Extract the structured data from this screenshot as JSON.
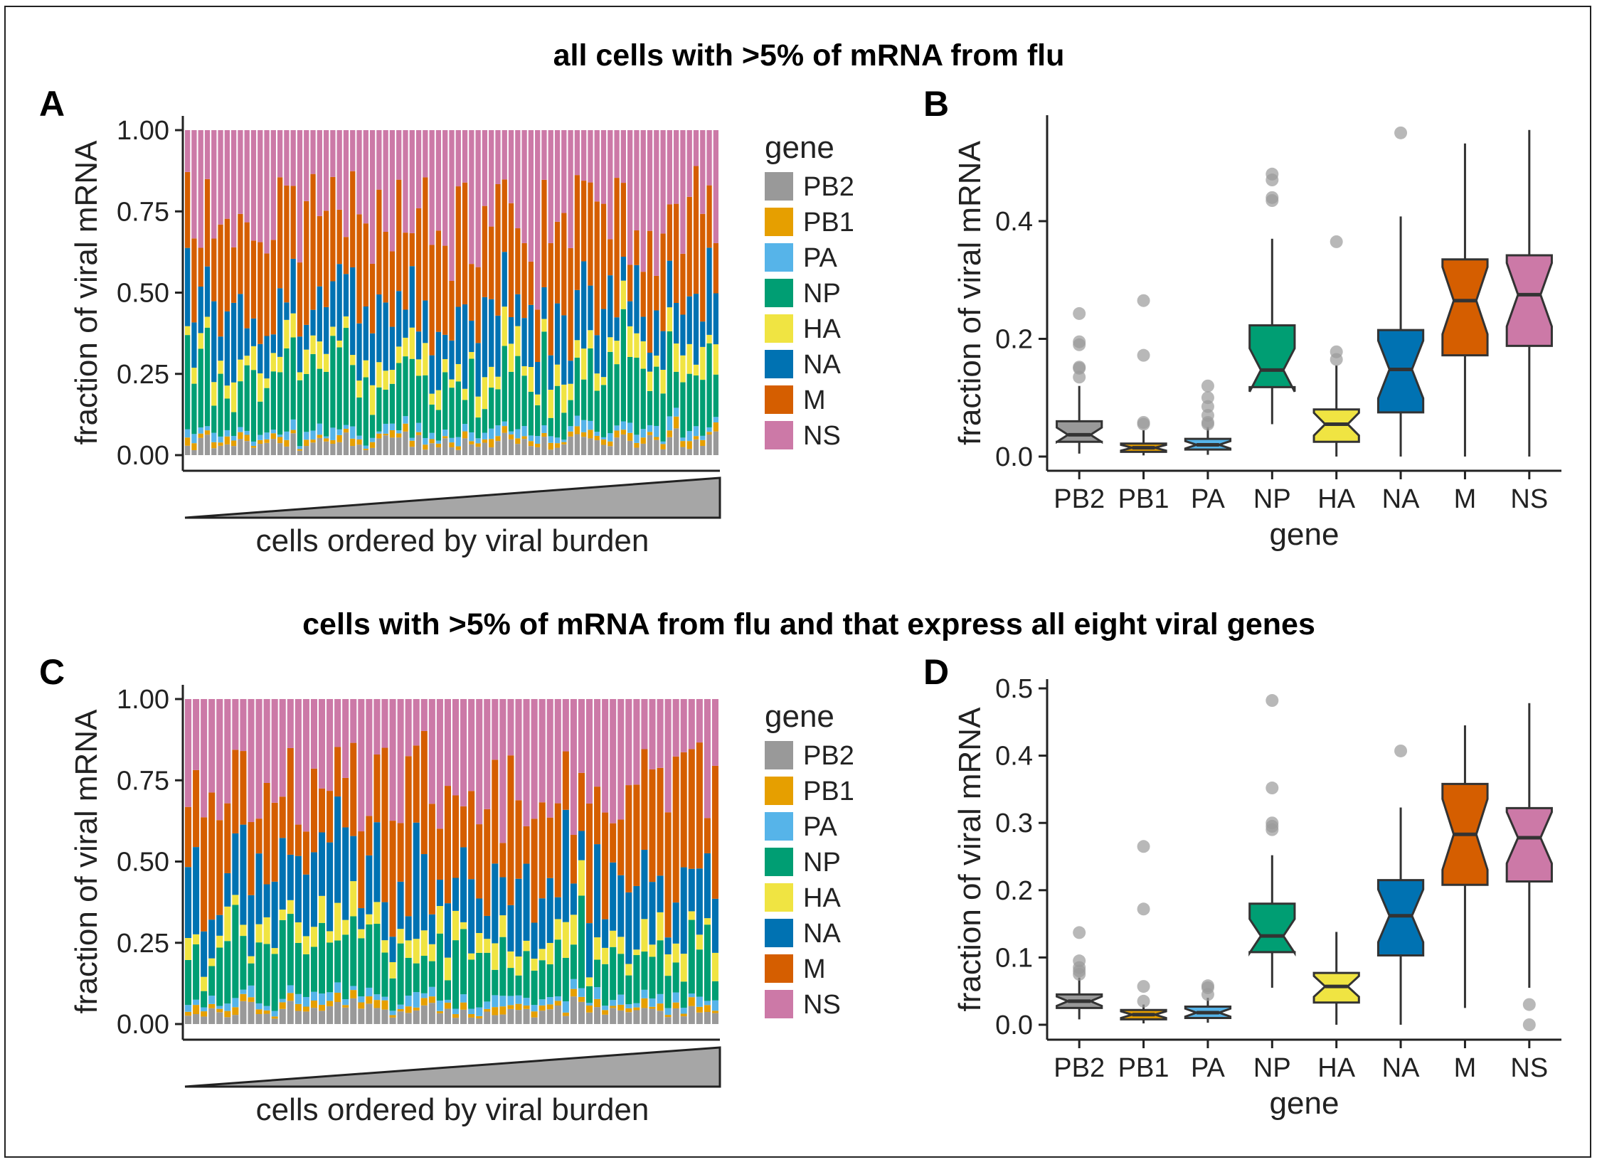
{
  "titles": {
    "top": "all cells with >5% of mRNA from flu",
    "bottom": "cells with >5% of mRNA from flu and that express all eight viral genes"
  },
  "panels": {
    "a": "A",
    "b": "B",
    "c": "C",
    "d": "D"
  },
  "colors": {
    "PB2": "#999999",
    "PB1": "#E69F00",
    "PA": "#56B4E9",
    "NP": "#009E73",
    "HA": "#F0E442",
    "NA": "#0072B2",
    "M": "#D55E00",
    "NS": "#CC79A7"
  },
  "legend": {
    "title": "gene",
    "items": [
      "PB2",
      "PB1",
      "PA",
      "NP",
      "HA",
      "NA",
      "M",
      "NS"
    ]
  },
  "chart_data": [
    {
      "panel": "A",
      "type": "bar",
      "stacked": true,
      "title": "",
      "xlabel": "cells ordered by viral burden",
      "ylabel": "fraction of viral mRNA",
      "ylim": [
        0,
        1
      ],
      "yticks": [
        "0.00",
        "0.25",
        "0.50",
        "0.75",
        "1.00"
      ],
      "n_cells": 81,
      "genes": [
        "PB2",
        "PB1",
        "PA",
        "NP",
        "HA",
        "NA",
        "M",
        "NS"
      ],
      "gene_mean_fraction": [
        0.04,
        0.015,
        0.02,
        0.17,
        0.06,
        0.15,
        0.26,
        0.28
      ],
      "burden_ramp": true
    },
    {
      "panel": "B",
      "type": "box",
      "xlabel": "gene",
      "ylabel": "fraction of viral mRNA",
      "ylim": [
        0,
        0.58
      ],
      "yticks": [
        0.0,
        0.2,
        0.4
      ],
      "ytick_labels": [
        "0.0",
        "0.2",
        "0.4"
      ],
      "categories": [
        "PB2",
        "PB1",
        "PA",
        "NP",
        "HA",
        "NA",
        "M",
        "NS"
      ],
      "boxes": [
        {
          "gene": "PB2",
          "lower_whisker": 0.005,
          "q1": 0.025,
          "median": 0.037,
          "q3": 0.06,
          "upper_whisker": 0.12,
          "outliers": [
            0.135,
            0.15,
            0.152,
            0.19,
            0.195,
            0.243
          ]
        },
        {
          "gene": "PB1",
          "lower_whisker": 0.002,
          "q1": 0.008,
          "median": 0.015,
          "q3": 0.022,
          "upper_whisker": 0.045,
          "outliers": [
            0.055,
            0.058,
            0.172,
            0.265
          ]
        },
        {
          "gene": "PA",
          "lower_whisker": 0.003,
          "q1": 0.012,
          "median": 0.02,
          "q3": 0.03,
          "upper_whisker": 0.05,
          "outliers": [
            0.055,
            0.058,
            0.07,
            0.085,
            0.1,
            0.12
          ]
        },
        {
          "gene": "NP",
          "lower_whisker": 0.055,
          "q1": 0.118,
          "median": 0.147,
          "q3": 0.223,
          "upper_whisker": 0.37,
          "outliers": [
            0.435,
            0.44,
            0.47,
            0.48
          ]
        },
        {
          "gene": "HA",
          "lower_whisker": 0.0,
          "q1": 0.025,
          "median": 0.055,
          "q3": 0.08,
          "upper_whisker": 0.155,
          "outliers": [
            0.165,
            0.178,
            0.365
          ]
        },
        {
          "gene": "NA",
          "lower_whisker": 0.0,
          "q1": 0.075,
          "median": 0.148,
          "q3": 0.215,
          "upper_whisker": 0.408,
          "outliers": [
            0.55
          ]
        },
        {
          "gene": "M",
          "lower_whisker": 0.0,
          "q1": 0.172,
          "median": 0.265,
          "q3": 0.335,
          "upper_whisker": 0.532,
          "outliers": []
        },
        {
          "gene": "NS",
          "lower_whisker": 0.0,
          "q1": 0.188,
          "median": 0.275,
          "q3": 0.342,
          "upper_whisker": 0.555,
          "outliers": []
        }
      ]
    },
    {
      "panel": "C",
      "type": "bar",
      "stacked": true,
      "title": "",
      "xlabel": "cells ordered by viral burden",
      "ylabel": "fraction of viral mRNA",
      "ylim": [
        0,
        1
      ],
      "yticks": [
        "0.00",
        "0.25",
        "0.50",
        "0.75",
        "1.00"
      ],
      "n_cells": 68,
      "genes": [
        "PB2",
        "PB1",
        "PA",
        "NP",
        "HA",
        "NA",
        "M",
        "NS"
      ],
      "gene_mean_fraction": [
        0.04,
        0.015,
        0.02,
        0.14,
        0.055,
        0.16,
        0.28,
        0.27
      ],
      "burden_ramp": true
    },
    {
      "panel": "D",
      "type": "box",
      "xlabel": "gene",
      "ylabel": "fraction of viral mRNA",
      "ylim": [
        0,
        0.5
      ],
      "yticks": [
        0.0,
        0.1,
        0.2,
        0.3,
        0.4,
        0.5
      ],
      "ytick_labels": [
        "0.0",
        "0.1",
        "0.2",
        "0.3",
        "0.4",
        "0.5"
      ],
      "categories": [
        "PB2",
        "PB1",
        "PA",
        "NP",
        "HA",
        "NA",
        "M",
        "NS"
      ],
      "boxes": [
        {
          "gene": "PB2",
          "lower_whisker": 0.008,
          "q1": 0.025,
          "median": 0.035,
          "q3": 0.045,
          "upper_whisker": 0.07,
          "outliers": [
            0.075,
            0.08,
            0.085,
            0.095,
            0.137
          ]
        },
        {
          "gene": "PB1",
          "lower_whisker": 0.002,
          "q1": 0.008,
          "median": 0.015,
          "q3": 0.022,
          "upper_whisker": 0.03,
          "outliers": [
            0.035,
            0.057,
            0.172,
            0.265
          ]
        },
        {
          "gene": "PA",
          "lower_whisker": 0.003,
          "q1": 0.01,
          "median": 0.018,
          "q3": 0.027,
          "upper_whisker": 0.04,
          "outliers": [
            0.045,
            0.055,
            0.058
          ]
        },
        {
          "gene": "NP",
          "lower_whisker": 0.055,
          "q1": 0.108,
          "median": 0.132,
          "q3": 0.18,
          "upper_whisker": 0.252,
          "outliers": [
            0.29,
            0.295,
            0.3,
            0.352,
            0.482
          ]
        },
        {
          "gene": "HA",
          "lower_whisker": 0.0,
          "q1": 0.033,
          "median": 0.057,
          "q3": 0.077,
          "upper_whisker": 0.138,
          "outliers": []
        },
        {
          "gene": "NA",
          "lower_whisker": 0.0,
          "q1": 0.103,
          "median": 0.162,
          "q3": 0.215,
          "upper_whisker": 0.323,
          "outliers": [
            0.407
          ]
        },
        {
          "gene": "M",
          "lower_whisker": 0.025,
          "q1": 0.208,
          "median": 0.283,
          "q3": 0.358,
          "upper_whisker": 0.445,
          "outliers": []
        },
        {
          "gene": "NS",
          "lower_whisker": 0.055,
          "q1": 0.213,
          "median": 0.278,
          "q3": 0.322,
          "upper_whisker": 0.478,
          "outliers": [
            0.03,
            0.0
          ]
        }
      ]
    }
  ]
}
